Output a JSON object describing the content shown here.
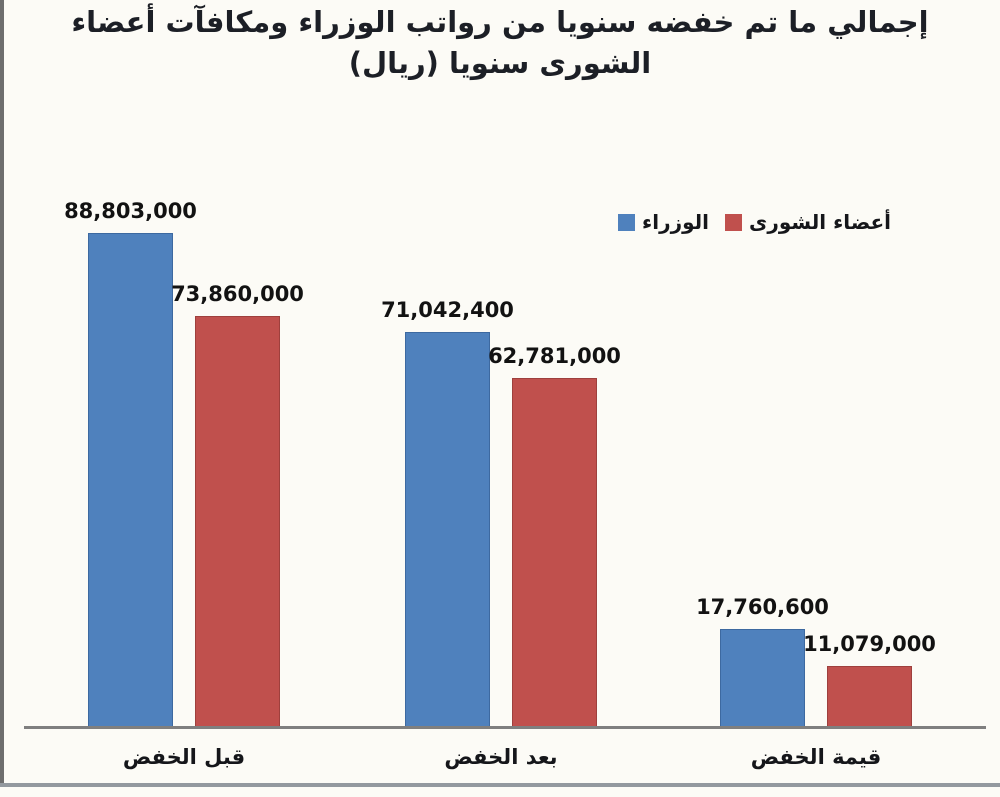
{
  "figure": {
    "background": "#fcfbf6"
  },
  "chart_data": {
    "type": "bar",
    "title": "إجمالي ما تم خفضه سنويا من رواتب الوزراء ومكافآت أعضاء الشورى سنويا (ريال)",
    "categories": [
      "قبل الخفض",
      "بعد الخفض",
      "قيمة الخفض"
    ],
    "series": [
      {
        "name": "الوزراء",
        "color": "#4F81BD",
        "values": [
          88803000,
          71042400,
          17760600
        ],
        "value_labels": [
          "88,803,000",
          "71,042,400",
          "17,760,600"
        ]
      },
      {
        "name": "أعضاء الشورى",
        "color": "#C0504D",
        "values": [
          73860000,
          62781000,
          11079000
        ],
        "value_labels": [
          "73,860,000",
          "62,781,000",
          "11,079,000"
        ]
      }
    ],
    "ylim": [
      0,
      90000000
    ],
    "grid": false,
    "legend_position": "inside-top-right",
    "axis_color": "#7F7F7F"
  }
}
